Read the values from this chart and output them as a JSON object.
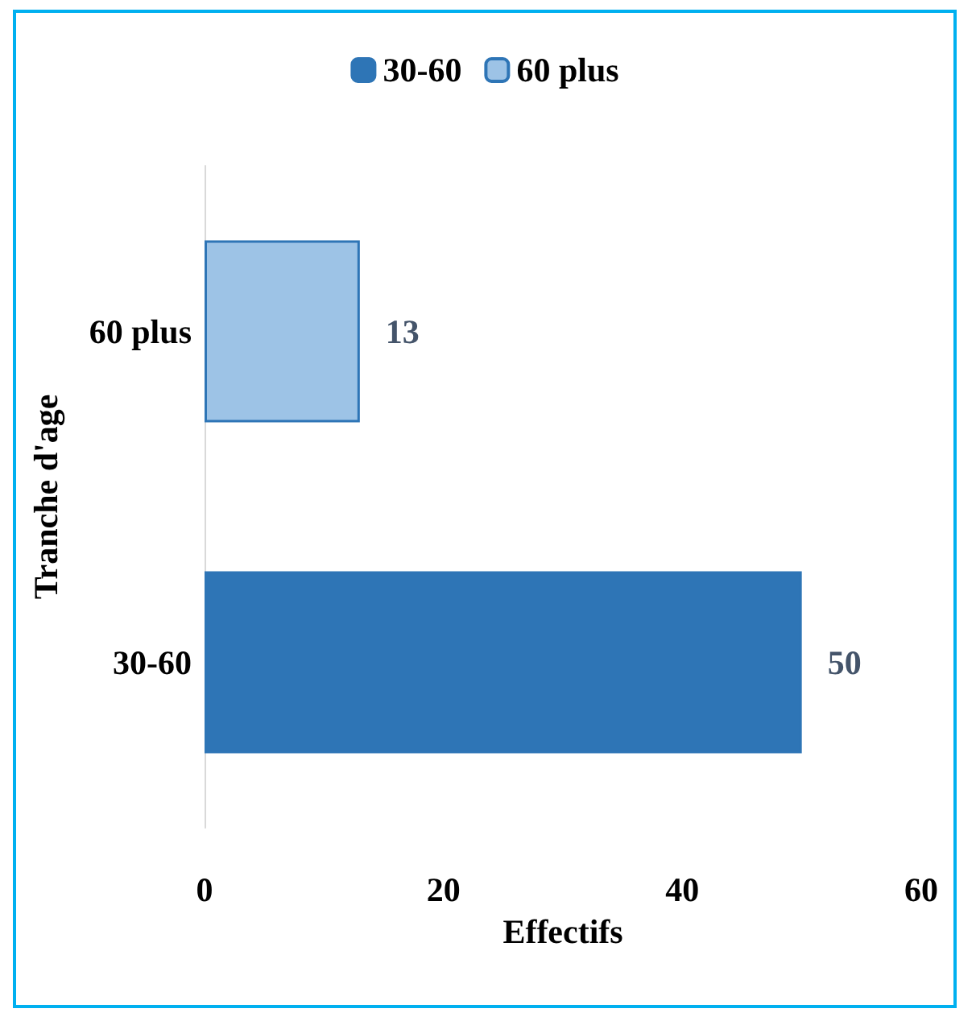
{
  "chart_data": {
    "type": "bar",
    "orientation": "horizontal",
    "stacked": true,
    "xlabel": "Effectifs",
    "ylabel": "Tranche d'age",
    "categories": [
      "60 plus",
      "30-60"
    ],
    "series": [
      {
        "name": "30-60",
        "color": "#2e75b6",
        "values": [
          null,
          50
        ]
      },
      {
        "name": "60 plus",
        "color": "#9dc3e6",
        "values": [
          13,
          null
        ]
      }
    ],
    "xlim": [
      0,
      60
    ],
    "xticks": [
      0,
      20,
      40,
      60
    ],
    "grid": false,
    "legend": "top",
    "data_labels": true
  }
}
